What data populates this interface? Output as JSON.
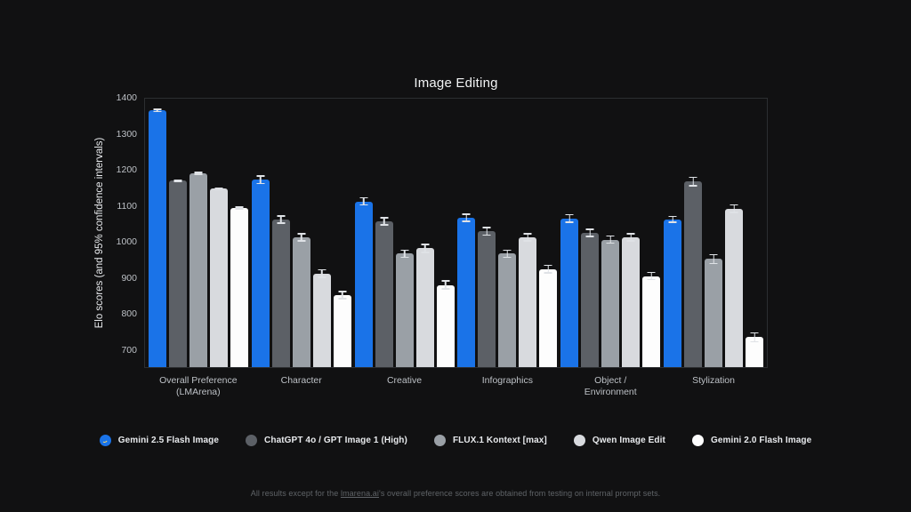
{
  "title": "Image Editing",
  "ylabel": "Elo scores (and 95% confidence intervals)",
  "footer": {
    "prefix": "All results except for the ",
    "link_text": "lmarena.ai",
    "suffix": "'s overall preference scores are obtained from testing on internal prompt sets."
  },
  "colors": {
    "background": "#111112",
    "plot_border": "#2c2e31",
    "tick_label": "#bdc1c6",
    "title_text": "#f1f3f4",
    "whisker": "#dfe2e6",
    "footer_text": "#606468",
    "accent_blue": "#1a73e8"
  },
  "chart_data": {
    "type": "bar",
    "title": "Image Editing",
    "xlabel": "",
    "ylabel": "Elo scores (and 95% confidence intervals)",
    "ylim": [
      650,
      1400
    ],
    "yticks": [
      700,
      800,
      900,
      1000,
      1100,
      1200,
      1300,
      1400
    ],
    "grid": false,
    "legend_position": "bottom",
    "error_bars": "95% confidence intervals",
    "categories": [
      "Overall Preference (LMArena)",
      "Character",
      "Creative",
      "Infographics",
      "Object / Environment",
      "Stylization"
    ],
    "category_label_lines": [
      [
        "Overall Preference",
        "(LMArena)"
      ],
      [
        "Character"
      ],
      [
        "Creative"
      ],
      [
        "Infographics"
      ],
      [
        "Object /",
        "Environment"
      ],
      [
        "Stylization"
      ]
    ],
    "series": [
      {
        "name": "Gemini 2.5 Flash Image",
        "color": "#1a73e8",
        "marker": "gemini-banana-logo",
        "values": [
          1362,
          1170,
          1110,
          1065,
          1063,
          1060
        ],
        "errors": [
          5,
          12,
          12,
          12,
          12,
          10
        ]
      },
      {
        "name": "ChatGPT 4o / GPT Image 1 (High)",
        "color": "#5c6066",
        "marker": "circle",
        "values": [
          1168,
          1060,
          1055,
          1027,
          1023,
          1165
        ],
        "errors": [
          4,
          12,
          12,
          12,
          12,
          14
        ]
      },
      {
        "name": "FLUX.1 Kontext [max]",
        "color": "#9aa0a6",
        "marker": "circle",
        "values": [
          1188,
          1010,
          965,
          965,
          1004,
          950
        ],
        "errors": [
          4,
          12,
          12,
          12,
          12,
          14
        ]
      },
      {
        "name": "Qwen Image Edit",
        "color": "#d8dade",
        "marker": "circle",
        "values": [
          1145,
          910,
          980,
          1010,
          1010,
          1090
        ],
        "errors": [
          4,
          12,
          13,
          12,
          12,
          12
        ]
      },
      {
        "name": "Gemini 2.0 Flash Image",
        "color": "#fdfdfd",
        "marker": "circle",
        "values": [
          1092,
          850,
          878,
          922,
          903,
          733
        ],
        "errors": [
          4,
          12,
          13,
          12,
          12,
          14
        ]
      }
    ]
  }
}
